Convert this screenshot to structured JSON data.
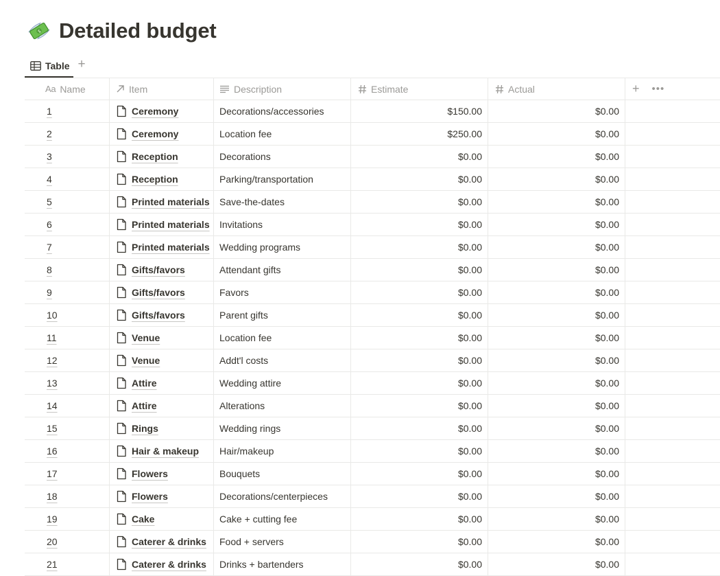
{
  "page": {
    "title": "Detailed budget",
    "icon": "money-with-wings-icon"
  },
  "views": {
    "active": "Table",
    "add_label": "+"
  },
  "columns": {
    "name": {
      "prefix": "Aa",
      "label": "Name"
    },
    "item": "Item",
    "description": "Description",
    "estimate": "Estimate",
    "actual": "Actual",
    "add": "+",
    "more": "•••"
  },
  "rows": [
    {
      "name": "1",
      "item": "Ceremony",
      "description": "Decorations/accessories",
      "estimate": "$150.00",
      "actual": "$0.00"
    },
    {
      "name": "2",
      "item": "Ceremony",
      "description": "Location fee",
      "estimate": "$250.00",
      "actual": "$0.00"
    },
    {
      "name": "3",
      "item": "Reception",
      "description": "Decorations",
      "estimate": "$0.00",
      "actual": "$0.00"
    },
    {
      "name": "4",
      "item": "Reception",
      "description": "Parking/transportation",
      "estimate": "$0.00",
      "actual": "$0.00"
    },
    {
      "name": "5",
      "item": "Printed materials",
      "description": "Save-the-dates",
      "estimate": "$0.00",
      "actual": "$0.00"
    },
    {
      "name": "6",
      "item": "Printed materials",
      "description": "Invitations",
      "estimate": "$0.00",
      "actual": "$0.00"
    },
    {
      "name": "7",
      "item": "Printed materials",
      "description": "Wedding programs",
      "estimate": "$0.00",
      "actual": "$0.00"
    },
    {
      "name": "8",
      "item": "Gifts/favors",
      "description": "Attendant gifts",
      "estimate": "$0.00",
      "actual": "$0.00"
    },
    {
      "name": "9",
      "item": "Gifts/favors",
      "description": "Favors",
      "estimate": "$0.00",
      "actual": "$0.00"
    },
    {
      "name": "10",
      "item": "Gifts/favors",
      "description": "Parent gifts",
      "estimate": "$0.00",
      "actual": "$0.00"
    },
    {
      "name": "11",
      "item": "Venue",
      "description": "Location fee",
      "estimate": "$0.00",
      "actual": "$0.00"
    },
    {
      "name": "12",
      "item": "Venue",
      "description": "Addt'l costs",
      "estimate": "$0.00",
      "actual": "$0.00"
    },
    {
      "name": "13",
      "item": "Attire",
      "description": "Wedding attire",
      "estimate": "$0.00",
      "actual": "$0.00"
    },
    {
      "name": "14",
      "item": "Attire",
      "description": "Alterations",
      "estimate": "$0.00",
      "actual": "$0.00"
    },
    {
      "name": "15",
      "item": "Rings",
      "description": "Wedding rings",
      "estimate": "$0.00",
      "actual": "$0.00"
    },
    {
      "name": "16",
      "item": "Hair & makeup",
      "description": "Hair/makeup",
      "estimate": "$0.00",
      "actual": "$0.00"
    },
    {
      "name": "17",
      "item": "Flowers",
      "description": "Bouquets",
      "estimate": "$0.00",
      "actual": "$0.00"
    },
    {
      "name": "18",
      "item": "Flowers",
      "description": "Decorations/centerpieces",
      "estimate": "$0.00",
      "actual": "$0.00"
    },
    {
      "name": "19",
      "item": "Cake",
      "description": "Cake + cutting fee",
      "estimate": "$0.00",
      "actual": "$0.00"
    },
    {
      "name": "20",
      "item": "Caterer & drinks",
      "description": "Food + servers",
      "estimate": "$0.00",
      "actual": "$0.00"
    },
    {
      "name": "21",
      "item": "Caterer & drinks",
      "description": "Drinks + bartenders",
      "estimate": "$0.00",
      "actual": "$0.00"
    }
  ]
}
